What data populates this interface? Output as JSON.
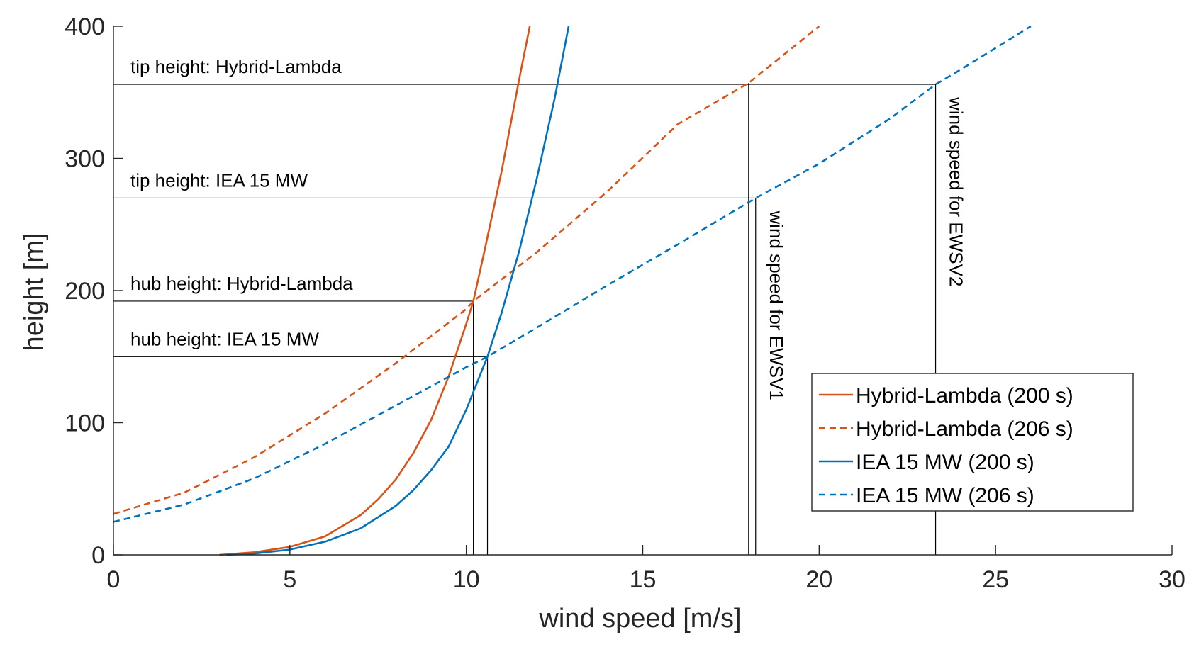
{
  "chart_data": {
    "type": "line",
    "title": "",
    "xlabel": "wind speed [m/s]",
    "ylabel": "height [m]",
    "xlim": [
      0,
      30
    ],
    "ylim": [
      0,
      400
    ],
    "xticks": [
      0,
      5,
      10,
      15,
      20,
      25,
      30
    ],
    "xtick_labels": [
      "0",
      "5",
      "10",
      "15",
      "20",
      "25",
      "30"
    ],
    "yticks": [
      0,
      100,
      200,
      300,
      400
    ],
    "ytick_labels": [
      "0",
      "100",
      "200",
      "300",
      "400"
    ],
    "grid": false,
    "legend_position": "bottom-right",
    "colors": {
      "orange": "#D95319",
      "blue": "#0072BD",
      "ref": "#000000",
      "axis": "#262626"
    },
    "series": [
      {
        "name": "Hybrid-Lambda (200 s)",
        "color": "#D95319",
        "style": "solid",
        "x": [
          3.0,
          4.0,
          5.0,
          6.0,
          7.0,
          7.5,
          8.0,
          8.5,
          9.0,
          9.5,
          10.0,
          10.2,
          10.5,
          11.0,
          11.5,
          11.8
        ],
        "y": [
          0,
          2,
          6,
          14,
          30,
          42,
          57,
          77,
          102,
          135,
          175,
          192,
          228,
          290,
          360,
          400
        ]
      },
      {
        "name": "Hybrid-Lambda (206 s)",
        "color": "#D95319",
        "style": "dashed",
        "x": [
          0,
          2,
          4,
          6,
          8,
          10,
          10.2,
          12,
          14,
          16,
          18,
          20
        ],
        "y": [
          31,
          47,
          74,
          107,
          145,
          186,
          192,
          229,
          275,
          326,
          357,
          400
        ]
      },
      {
        "name": "IEA 15 MW (200 s)",
        "color": "#0072BD",
        "style": "solid",
        "x": [
          3.2,
          4.0,
          5.0,
          6.0,
          7.0,
          8.0,
          8.5,
          9.0,
          9.5,
          10.0,
          10.6,
          11.0,
          11.5,
          12.0,
          12.5,
          12.9
        ],
        "y": [
          0,
          1,
          4,
          10,
          20,
          37,
          49,
          64,
          82,
          110,
          150,
          183,
          230,
          285,
          345,
          400
        ]
      },
      {
        "name": "IEA 15 MW (206 s)",
        "color": "#0072BD",
        "style": "dashed",
        "x": [
          0,
          2,
          4,
          6,
          8,
          10,
          10.6,
          12,
          14,
          16,
          18.2,
          20,
          22,
          23.3,
          24,
          26
        ],
        "y": [
          25,
          38,
          58,
          84,
          113,
          142,
          150,
          172,
          204,
          235,
          270,
          296,
          330,
          356,
          367,
          400
        ]
      }
    ],
    "reference_lines": [
      {
        "kind": "horizontal",
        "y": 356,
        "x_end": 23.3,
        "label": "tip height: Hybrid-Lambda"
      },
      {
        "kind": "horizontal",
        "y": 270,
        "x_end": 18.2,
        "label": "tip height: IEA 15 MW"
      },
      {
        "kind": "horizontal",
        "y": 192,
        "x_end": 10.2,
        "label": "hub height: Hybrid-Lambda"
      },
      {
        "kind": "horizontal",
        "y": 150,
        "x_end": 10.6,
        "label": "hub height: IEA 15 MW"
      },
      {
        "kind": "vertical",
        "x": 10.2,
        "y_end": 192,
        "label": ""
      },
      {
        "kind": "vertical",
        "x": 10.6,
        "y_end": 150,
        "label": ""
      },
      {
        "kind": "vertical",
        "x": 18.0,
        "y_end": 357,
        "label": ""
      },
      {
        "kind": "vertical",
        "x": 18.2,
        "y_end": 270,
        "label": "wind speed for EWSV1"
      },
      {
        "kind": "vertical",
        "x": 23.3,
        "y_end": 356,
        "label": "wind speed for EWSV2"
      }
    ]
  }
}
